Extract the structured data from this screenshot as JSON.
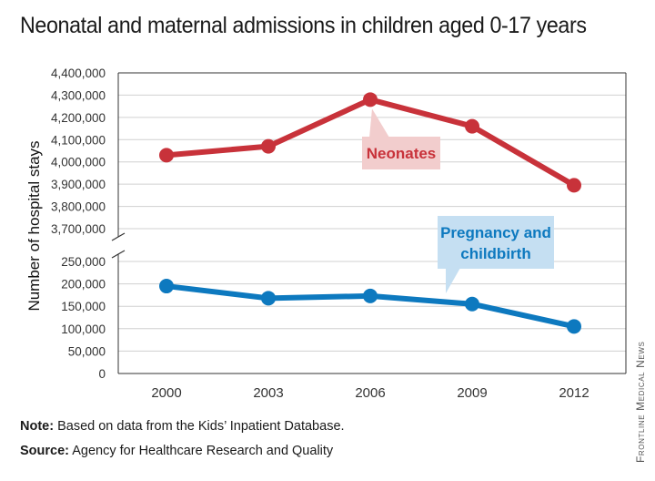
{
  "header": {
    "title": "Neonatal and maternal admissions in children aged 0-17 years"
  },
  "footer": {
    "note_label": "Note:",
    "note_text": "Based on data from the Kids’ Inpatient Database.",
    "source_label": "Source:",
    "source_text": "Agency for Healthcare Research and Quality",
    "credit": "Frontline Medical News"
  },
  "chart_data": {
    "type": "line",
    "title": "Neonatal and maternal admissions in children aged 0-17 years",
    "xlabel": "",
    "ylabel": "Number of hospital stays",
    "categories": [
      "2000",
      "2003",
      "2006",
      "2009",
      "2012"
    ],
    "y_axis_broken": true,
    "y_ticks_upper": [
      "3,700,000",
      "3,800,000",
      "3,900,000",
      "4,000,000",
      "4,100,000",
      "4,200,000",
      "4,300,000",
      "4,400,000"
    ],
    "y_ticks_lower": [
      "0",
      "50,000",
      "100,000",
      "150,000",
      "200,000",
      "250,000"
    ],
    "ylim_upper": [
      3700000,
      4400000
    ],
    "ylim_lower": [
      0,
      250000
    ],
    "grid": "horizontal",
    "series": [
      {
        "name": "Neonates",
        "segment": "upper",
        "color": "#c8323a",
        "label_bg": "#f2cdcd",
        "values": [
          4030000,
          4070000,
          4280000,
          4160000,
          3895000
        ]
      },
      {
        "name": "Pregnancy and childbirth",
        "segment": "lower",
        "color": "#0d79bf",
        "label_bg": "#c5dff2",
        "values": [
          195000,
          168000,
          173000,
          155000,
          105000
        ]
      }
    ]
  }
}
